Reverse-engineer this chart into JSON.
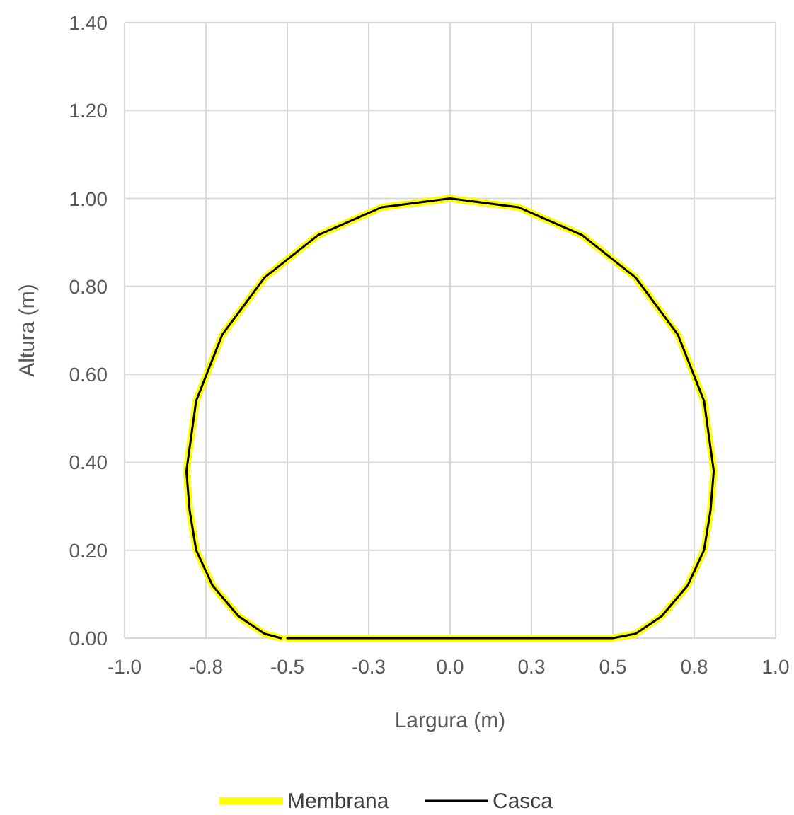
{
  "chart_data": {
    "type": "line",
    "xlabel": "Largura (m)",
    "ylabel": "Altura (m)",
    "series": [
      {
        "name": "Membrana",
        "color": "#ffff00",
        "x": [
          -0.5,
          0,
          0.5,
          0.57,
          0.65,
          0.73,
          0.78,
          0.8,
          0.81,
          0.78,
          0.7,
          0.57,
          0.405,
          0.21,
          0,
          -0.21,
          -0.405,
          -0.57,
          -0.7,
          -0.78,
          -0.81,
          -0.8,
          -0.78,
          -0.73,
          -0.65,
          -0.57,
          -0.52
        ],
        "values": [
          0,
          0,
          0,
          0.01,
          0.05,
          0.12,
          0.2,
          0.29,
          0.38,
          0.54,
          0.69,
          0.82,
          0.917,
          0.98,
          1.0,
          0.98,
          0.917,
          0.82,
          0.69,
          0.54,
          0.38,
          0.29,
          0.2,
          0.12,
          0.05,
          0.01,
          0
        ]
      },
      {
        "name": "Casca",
        "color": "#000000",
        "x": [
          -0.5,
          0,
          0.5,
          0.57,
          0.65,
          0.73,
          0.78,
          0.8,
          0.81,
          0.78,
          0.7,
          0.57,
          0.405,
          0.21,
          0,
          -0.21,
          -0.405,
          -0.57,
          -0.7,
          -0.78,
          -0.81,
          -0.8,
          -0.78,
          -0.73,
          -0.65,
          -0.57,
          -0.52
        ],
        "values": [
          0,
          0,
          0,
          0.01,
          0.05,
          0.12,
          0.2,
          0.29,
          0.38,
          0.54,
          0.69,
          0.82,
          0.917,
          0.98,
          1.0,
          0.98,
          0.917,
          0.82,
          0.69,
          0.54,
          0.38,
          0.29,
          0.2,
          0.12,
          0.05,
          0.01,
          0
        ]
      }
    ],
    "xlim": [
      -1,
      1
    ],
    "xticks": [
      {
        "value": -1,
        "label": "-1.0"
      },
      {
        "value": -0.75,
        "label": "-0.8"
      },
      {
        "value": -0.5,
        "label": "-0.5"
      },
      {
        "value": -0.25,
        "label": "-0.3"
      },
      {
        "value": 0,
        "label": "0.0"
      },
      {
        "value": 0.25,
        "label": "0.3"
      },
      {
        "value": 0.5,
        "label": "0.5"
      },
      {
        "value": 0.75,
        "label": "0.8"
      },
      {
        "value": 1,
        "label": "1.0"
      }
    ],
    "ylim": [
      0,
      1.4
    ],
    "yticks": [
      {
        "value": 0,
        "label": "0.00"
      },
      {
        "value": 0.2,
        "label": "0.20"
      },
      {
        "value": 0.4,
        "label": "0.40"
      },
      {
        "value": 0.6,
        "label": "0.60"
      },
      {
        "value": 0.8,
        "label": "0.80"
      },
      {
        "value": 1,
        "label": "1.00"
      },
      {
        "value": 1.2,
        "label": "1.20"
      },
      {
        "value": 1.4,
        "label": "1.40"
      }
    ],
    "grid": true,
    "legend": "bottom",
    "marker": "none",
    "line_style": "solid"
  }
}
